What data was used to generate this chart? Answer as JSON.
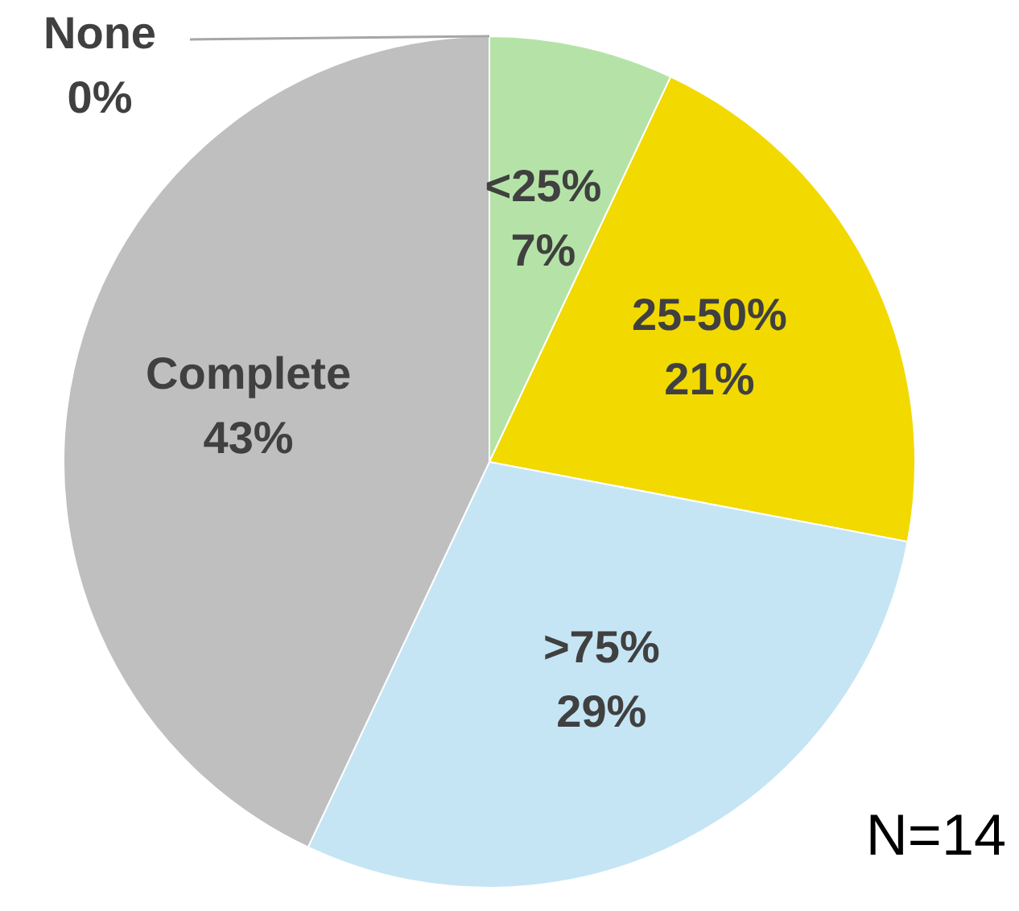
{
  "chart_data": {
    "type": "pie",
    "categories": [
      "None",
      "<25%",
      "25-50%",
      ">75%",
      "Complete"
    ],
    "values": [
      0,
      7,
      21,
      29,
      43
    ],
    "value_labels": [
      "0%",
      "7%",
      "21%",
      "29%",
      "43%"
    ],
    "colors": [
      "#d9d9d9",
      "#b5e3a7",
      "#f2d900",
      "#c5e5f4",
      "#bfbfbf"
    ],
    "legend": false,
    "annotations": [
      "N=14"
    ]
  }
}
